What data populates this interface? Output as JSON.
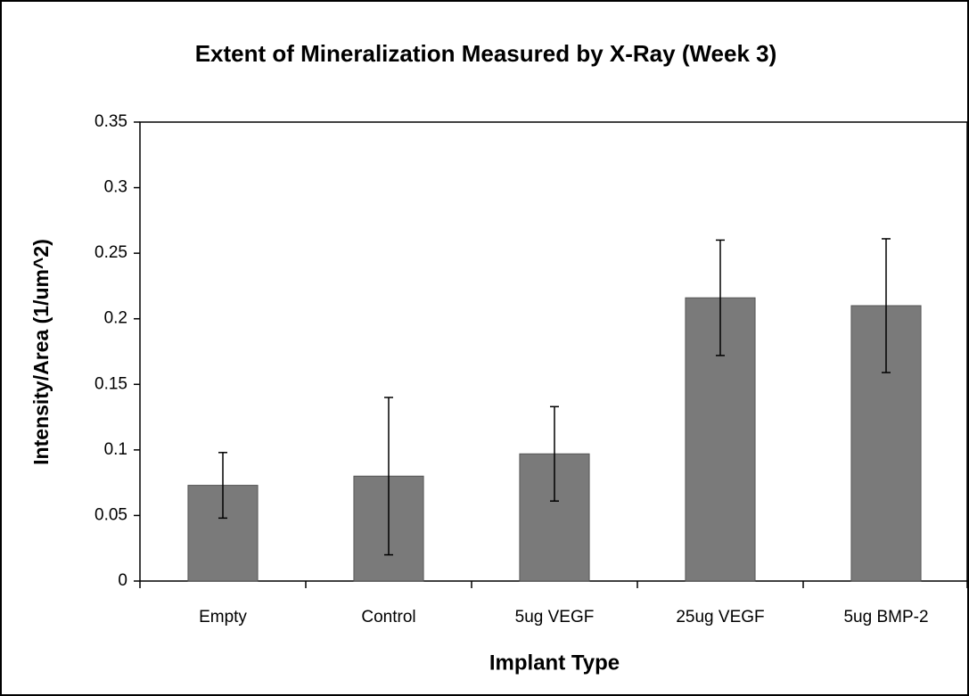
{
  "chart_data": {
    "type": "bar",
    "title": "Extent of Mineralization Measured by X-Ray (Week 3)",
    "x_label": "Implant Type",
    "y_label": "Intensity/Area (1/um^2)",
    "categories": [
      "Empty",
      "Control",
      "5ug VEGF",
      "25ug VEGF",
      "5ug BMP-2"
    ],
    "values": [
      0.073,
      0.08,
      0.097,
      0.216,
      0.21
    ],
    "errors": [
      0.025,
      0.06,
      0.036,
      0.044,
      0.051
    ],
    "color": "#7a7a7a",
    "ylim": [
      0,
      0.35
    ],
    "yticks": [
      0,
      0.05,
      0.1,
      0.15,
      0.2,
      0.25,
      0.3,
      0.35
    ],
    "grid": false
  }
}
